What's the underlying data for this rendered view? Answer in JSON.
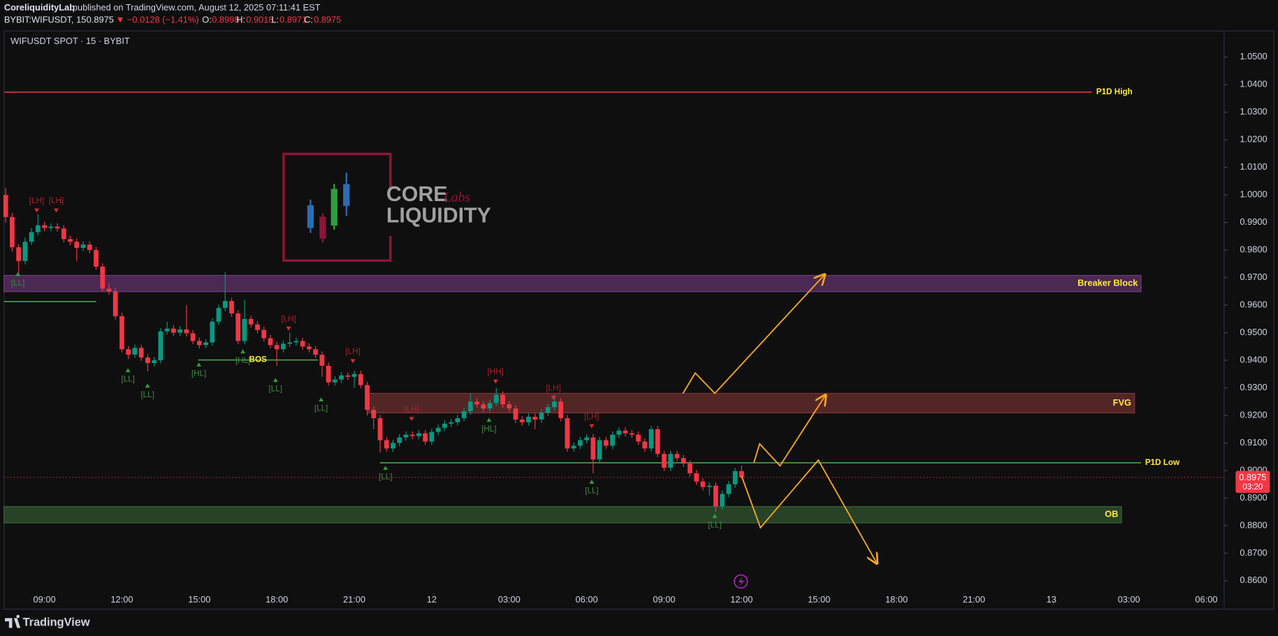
{
  "header": {
    "author": "CoreliquidityLab",
    "published": "published on TradingView.com, August 12, 2025 07:11:41 EST",
    "symbol": "BYBIT:WIFUSDT, 15",
    "change": "▼ −0.0128 (−1.41%)",
    "o": "O:",
    "h": "H:",
    "l": "L:",
    "c": "C:"
  },
  "chart_data": {
    "type": "candlestick",
    "title": "WIFUSDT SPOT · 15 · BYBIT",
    "up_color": "#089981",
    "down_color": "#f23645",
    "ohlc": [
      [
        1.0,
        1.0025,
        0.99,
        0.992
      ],
      [
        0.992,
        0.9935,
        0.9795,
        0.981
      ],
      [
        0.981,
        0.9822,
        0.9715,
        0.976
      ],
      [
        0.976,
        0.9845,
        0.9748,
        0.983
      ],
      [
        0.983,
        0.988,
        0.9818,
        0.9865
      ],
      [
        0.9865,
        0.993,
        0.9853,
        0.989
      ],
      [
        0.989,
        0.9902,
        0.9868,
        0.988
      ],
      [
        0.988,
        0.9897,
        0.9868,
        0.9885
      ],
      [
        0.9885,
        0.9897,
        0.9866,
        0.9878
      ],
      [
        0.9878,
        0.989,
        0.9828,
        0.984
      ],
      [
        0.984,
        0.9852,
        0.9818,
        0.983
      ],
      [
        0.983,
        0.9842,
        0.976,
        0.9808
      ],
      [
        0.9808,
        0.9832,
        0.9796,
        0.982
      ],
      [
        0.982,
        0.9832,
        0.9788,
        0.98
      ],
      [
        0.98,
        0.9812,
        0.9728,
        0.974
      ],
      [
        0.974,
        0.9752,
        0.9648,
        0.966
      ],
      [
        0.966,
        0.968,
        0.9638,
        0.965
      ],
      [
        0.965,
        0.9662,
        0.9548,
        0.956
      ],
      [
        0.956,
        0.9572,
        0.9428,
        0.944
      ],
      [
        0.944,
        0.9452,
        0.9405,
        0.942
      ],
      [
        0.942,
        0.9457,
        0.9408,
        0.9445
      ],
      [
        0.9445,
        0.9457,
        0.9398,
        0.941
      ],
      [
        0.941,
        0.9422,
        0.936,
        0.939
      ],
      [
        0.939,
        0.9412,
        0.9378,
        0.94
      ],
      [
        0.94,
        0.9517,
        0.9388,
        0.9505
      ],
      [
        0.9505,
        0.954,
        0.9493,
        0.9515
      ],
      [
        0.9515,
        0.9527,
        0.9488,
        0.95
      ],
      [
        0.95,
        0.9524,
        0.9488,
        0.9512
      ],
      [
        0.9512,
        0.96,
        0.9486,
        0.9498
      ],
      [
        0.9498,
        0.951,
        0.9458,
        0.947
      ],
      [
        0.947,
        0.9482,
        0.9443,
        0.9455
      ],
      [
        0.9455,
        0.9477,
        0.9443,
        0.9465
      ],
      [
        0.9465,
        0.9552,
        0.9453,
        0.954
      ],
      [
        0.954,
        0.9602,
        0.9528,
        0.959
      ],
      [
        0.959,
        0.972,
        0.9578,
        0.9615
      ],
      [
        0.9615,
        0.9627,
        0.9558,
        0.957
      ],
      [
        0.957,
        0.9582,
        0.9458,
        0.947
      ],
      [
        0.947,
        0.962,
        0.9458,
        0.955
      ],
      [
        0.955,
        0.9562,
        0.9518,
        0.953
      ],
      [
        0.953,
        0.9542,
        0.9498,
        0.951
      ],
      [
        0.951,
        0.9522,
        0.9468,
        0.948
      ],
      [
        0.948,
        0.9492,
        0.9443,
        0.9455
      ],
      [
        0.9455,
        0.9467,
        0.938,
        0.944
      ],
      [
        0.944,
        0.9472,
        0.9428,
        0.946
      ],
      [
        0.946,
        0.95,
        0.9448,
        0.9465
      ],
      [
        0.9465,
        0.9482,
        0.9453,
        0.947
      ],
      [
        0.947,
        0.9482,
        0.9438,
        0.945
      ],
      [
        0.945,
        0.9462,
        0.9428,
        0.944
      ],
      [
        0.944,
        0.9452,
        0.9408,
        0.942
      ],
      [
        0.942,
        0.9432,
        0.934,
        0.938
      ],
      [
        0.938,
        0.9392,
        0.9308,
        0.932
      ],
      [
        0.932,
        0.9342,
        0.9308,
        0.933
      ],
      [
        0.933,
        0.9357,
        0.9318,
        0.9345
      ],
      [
        0.9345,
        0.9357,
        0.9328,
        0.934
      ],
      [
        0.934,
        0.9362,
        0.93,
        0.935
      ],
      [
        0.935,
        0.9362,
        0.9298,
        0.931
      ],
      [
        0.931,
        0.9322,
        0.92,
        0.922
      ],
      [
        0.922,
        0.9232,
        0.915,
        0.919
      ],
      [
        0.919,
        0.9202,
        0.9065,
        0.911
      ],
      [
        0.911,
        0.9122,
        0.9068,
        0.908
      ],
      [
        0.908,
        0.9112,
        0.9068,
        0.91
      ],
      [
        0.91,
        0.9132,
        0.9088,
        0.912
      ],
      [
        0.912,
        0.9142,
        0.9108,
        0.913
      ],
      [
        0.913,
        0.9142,
        0.9113,
        0.9125
      ],
      [
        0.9125,
        0.9147,
        0.9113,
        0.9135
      ],
      [
        0.9135,
        0.9147,
        0.9093,
        0.9105
      ],
      [
        0.9105,
        0.9152,
        0.9093,
        0.914
      ],
      [
        0.914,
        0.9167,
        0.9128,
        0.9155
      ],
      [
        0.9155,
        0.9182,
        0.9143,
        0.917
      ],
      [
        0.917,
        0.9187,
        0.9158,
        0.9175
      ],
      [
        0.9175,
        0.9202,
        0.9163,
        0.919
      ],
      [
        0.919,
        0.9227,
        0.9178,
        0.9215
      ],
      [
        0.9215,
        0.928,
        0.9203,
        0.925
      ],
      [
        0.925,
        0.9262,
        0.9228,
        0.924
      ],
      [
        0.924,
        0.9252,
        0.9213,
        0.9225
      ],
      [
        0.9225,
        0.9257,
        0.9213,
        0.9245
      ],
      [
        0.9245,
        0.93,
        0.9233,
        0.9275
      ],
      [
        0.9275,
        0.9287,
        0.9228,
        0.924
      ],
      [
        0.924,
        0.9252,
        0.9213,
        0.9225
      ],
      [
        0.9225,
        0.9237,
        0.9173,
        0.9185
      ],
      [
        0.9185,
        0.9197,
        0.9163,
        0.9175
      ],
      [
        0.9175,
        0.9207,
        0.9163,
        0.9195
      ],
      [
        0.9195,
        0.9207,
        0.915,
        0.9185
      ],
      [
        0.9185,
        0.9222,
        0.9173,
        0.921
      ],
      [
        0.921,
        0.9242,
        0.9198,
        0.923
      ],
      [
        0.923,
        0.9275,
        0.9218,
        0.925
      ],
      [
        0.925,
        0.9262,
        0.9178,
        0.919
      ],
      [
        0.919,
        0.9202,
        0.9068,
        0.908
      ],
      [
        0.908,
        0.9102,
        0.9068,
        0.909
      ],
      [
        0.909,
        0.9122,
        0.9078,
        0.911
      ],
      [
        0.911,
        0.9132,
        0.9098,
        0.912
      ],
      [
        0.912,
        0.9132,
        0.899,
        0.904
      ],
      [
        0.904,
        0.9122,
        0.9028,
        0.911
      ],
      [
        0.911,
        0.9122,
        0.9078,
        0.909
      ],
      [
        0.909,
        0.9142,
        0.9078,
        0.913
      ],
      [
        0.913,
        0.9157,
        0.9118,
        0.9145
      ],
      [
        0.9145,
        0.9157,
        0.9123,
        0.9135
      ],
      [
        0.9135,
        0.9147,
        0.9118,
        0.913
      ],
      [
        0.913,
        0.9142,
        0.9093,
        0.9105
      ],
      [
        0.9105,
        0.9117,
        0.9068,
        0.908
      ],
      [
        0.908,
        0.9162,
        0.9068,
        0.915
      ],
      [
        0.915,
        0.9162,
        0.9048,
        0.906
      ],
      [
        0.906,
        0.9072,
        0.8998,
        0.901
      ],
      [
        0.901,
        0.9072,
        0.8998,
        0.906
      ],
      [
        0.906,
        0.9072,
        0.9033,
        0.9045
      ],
      [
        0.9045,
        0.9057,
        0.9013,
        0.9025
      ],
      [
        0.9025,
        0.9037,
        0.8978,
        0.899
      ],
      [
        0.899,
        0.9002,
        0.8948,
        0.896
      ],
      [
        0.896,
        0.8972,
        0.8928,
        0.894
      ],
      [
        0.894,
        0.8957,
        0.891,
        0.8945
      ],
      [
        0.8945,
        0.8957,
        0.885,
        0.887
      ],
      [
        0.887,
        0.8927,
        0.8858,
        0.8915
      ],
      [
        0.8915,
        0.8962,
        0.8903,
        0.895
      ],
      [
        0.895,
        0.901,
        0.8938,
        0.8998
      ],
      [
        0.8998,
        0.9018,
        0.8971,
        0.8975
      ]
    ],
    "ylim": [
      0.8497,
      1.0595
    ],
    "yticks": [
      {
        "value": 1.05,
        "label": "1.0500"
      },
      {
        "value": 1.04,
        "label": "1.0400"
      },
      {
        "value": 1.03,
        "label": "1.0300"
      },
      {
        "value": 1.02,
        "label": "1.0200"
      },
      {
        "value": 1.01,
        "label": "1.0100"
      },
      {
        "value": 1.0,
        "label": "1.0000"
      },
      {
        "value": 0.99,
        "label": "0.9900"
      },
      {
        "value": 0.98,
        "label": "0.9800"
      },
      {
        "value": 0.97,
        "label": "0.9700"
      },
      {
        "value": 0.96,
        "label": "0.9600"
      },
      {
        "value": 0.95,
        "label": "0.9500"
      },
      {
        "value": 0.94,
        "label": "0.9400"
      },
      {
        "value": 0.93,
        "label": "0.9300"
      },
      {
        "value": 0.92,
        "label": "0.9200"
      },
      {
        "value": 0.91,
        "label": "0.9100"
      },
      {
        "value": 0.9,
        "label": "0.9000"
      },
      {
        "value": 0.89,
        "label": "0.8900"
      },
      {
        "value": 0.88,
        "label": "0.8800"
      },
      {
        "value": 0.87,
        "label": "0.8700"
      },
      {
        "value": 0.86,
        "label": "0.8600"
      }
    ],
    "xticks": [
      "09:00",
      "12:00",
      "15:00",
      "18:00",
      "21:00",
      "12",
      "03:00",
      "06:00",
      "09:00",
      "12:00",
      "15:00",
      "18:00",
      "21:00",
      "13",
      "03:00",
      "06:00"
    ],
    "countdown": "03:20",
    "label_color": "#ffeb3b",
    "levels": [
      {
        "label": "P1D High",
        "value": 1.0373,
        "color": "#f23645"
      },
      {
        "label": "P1D Low",
        "value": 0.9028,
        "color": "#4caf50"
      },
      {
        "label": "BOS",
        "value": 0.9401,
        "color": "#4caf50"
      },
      {
        "value": 0.9613,
        "color": "#4caf50"
      }
    ],
    "zones": [
      {
        "label": "Breaker Block",
        "from": 0.9649,
        "to": 0.9708,
        "color": "#7b3f8c"
      },
      {
        "label": "FVG",
        "from": 0.9209,
        "to": 0.928,
        "color": "#8c3a3a"
      },
      {
        "label": "OB",
        "from": 0.881,
        "to": 0.8869,
        "color": "#3c6e3c"
      }
    ],
    "pivots": [
      "[LH]",
      "[LH]",
      "[LL]",
      "[LL]",
      "[LL]",
      "[HL]",
      "[HL]",
      "[LL]",
      "[LH]",
      "[LL]",
      "[LH]",
      "[LL]",
      "[LH]",
      "[HH]",
      "[HL]",
      "[LH]",
      "[LH]",
      "[LL]",
      "[LL]"
    ]
  },
  "watermark": {
    "line1": "CORE",
    "tag": "Labs",
    "line2": "LIQUIDITY"
  },
  "footer": {
    "brand": "TradingView"
  }
}
